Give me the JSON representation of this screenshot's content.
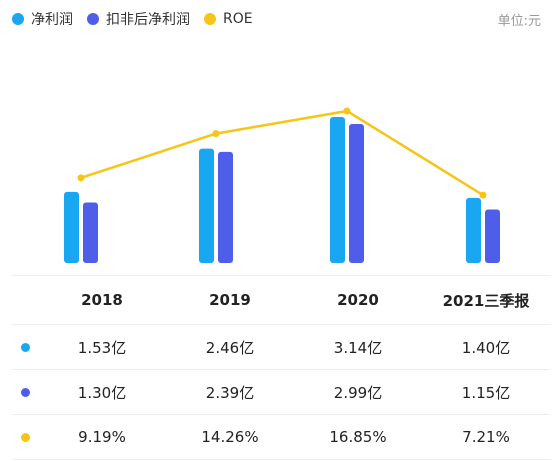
{
  "legend": [
    {
      "label": "净利润",
      "color": "#1aa7f2"
    },
    {
      "label": "扣非后净利润",
      "color": "#4f5ee9"
    },
    {
      "label": "ROE",
      "color": "#f5c518"
    }
  ],
  "unit_label": "单位:元",
  "chart_data": {
    "type": "bar",
    "categories": [
      "2018",
      "2019",
      "2020",
      "2021三季报"
    ],
    "series": [
      {
        "name": "净利润",
        "values": [
          1.53,
          2.46,
          3.14,
          1.4
        ],
        "display": [
          "1.53亿",
          "2.46亿",
          "3.14亿",
          "1.40亿"
        ],
        "color": "#1aa7f2"
      },
      {
        "name": "扣非后净利润",
        "values": [
          1.3,
          2.39,
          2.99,
          1.15
        ],
        "display": [
          "1.30亿",
          "2.39亿",
          "2.99亿",
          "1.15亿"
        ],
        "color": "#4f5ee9"
      },
      {
        "name": "ROE",
        "type": "line",
        "values": [
          9.19,
          14.26,
          16.85,
          7.21
        ],
        "display": [
          "9.19%",
          "14.26%",
          "16.85%",
          "7.21%"
        ],
        "color": "#f5c518"
      }
    ],
    "bar_range": [
      0,
      3.14
    ],
    "line_range": [
      0,
      16.85
    ],
    "grid": false,
    "legend_position": "top-left"
  }
}
